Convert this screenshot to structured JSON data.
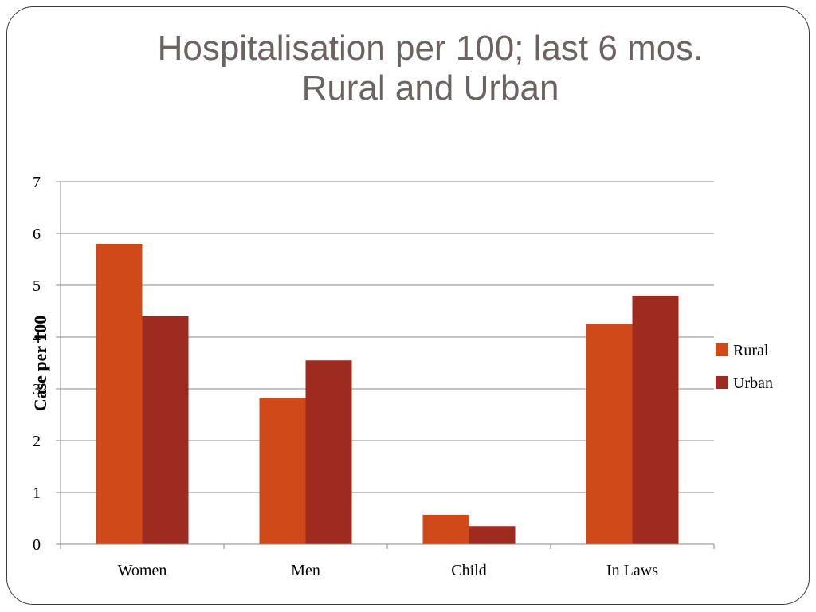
{
  "slide": {
    "title_line1": "Hospitalisation per 100; last 6 mos.",
    "title_line2": "Rural and Urban"
  },
  "chart_data": {
    "type": "bar",
    "title": "",
    "ylabel": "Case per 100",
    "xlabel": "",
    "categories": [
      "Women",
      "Men",
      "Child",
      "In Laws"
    ],
    "series": [
      {
        "name": "Rural",
        "color": "#d04a19",
        "values": [
          5.8,
          2.82,
          0.57,
          4.25
        ]
      },
      {
        "name": "Urban",
        "color": "#9e2b20",
        "values": [
          4.4,
          3.55,
          0.35,
          4.8
        ]
      }
    ],
    "ylim": [
      0,
      7
    ],
    "yticks": [
      0,
      1,
      2,
      3,
      4,
      5,
      6,
      7
    ],
    "grid": true,
    "legend": "right"
  }
}
